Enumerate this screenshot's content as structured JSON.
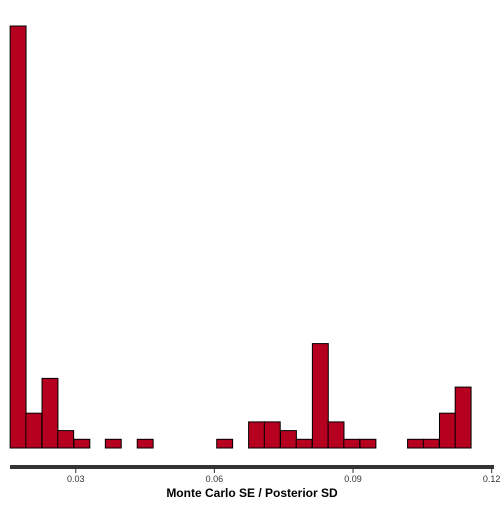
{
  "chart_data": {
    "type": "bar",
    "subtype": "histogram",
    "title": "",
    "xlabel": "Monte Carlo SE / Posterior SD",
    "ylabel": "",
    "xlim": [
      0.01577,
      0.1205
    ],
    "ylim": [
      0,
      97
    ],
    "bin_width": 0.00344,
    "x_ticks": [
      {
        "value": 0.03,
        "label": "0.03"
      },
      {
        "value": 0.06,
        "label": "0.06"
      },
      {
        "value": 0.09,
        "label": "0.09"
      },
      {
        "value": 0.12,
        "label": "0.12"
      }
    ],
    "bin_starts": [
      0.0158,
      0.0192,
      0.0227,
      0.0261,
      0.0296,
      0.033,
      0.0364,
      0.0399,
      0.0433,
      0.0468,
      0.0502,
      0.0536,
      0.0571,
      0.0605,
      0.064,
      0.0674,
      0.0708,
      0.0743,
      0.0777,
      0.0812,
      0.0846,
      0.088,
      0.0915,
      0.0949,
      0.0984,
      0.1018,
      0.1052,
      0.1087,
      0.1121,
      0.1156
    ],
    "values": [
      97,
      8,
      16,
      4,
      2,
      0,
      2,
      0,
      2,
      0,
      0,
      0,
      0,
      2,
      0,
      6,
      6,
      4,
      2,
      24,
      6,
      2,
      2,
      0,
      0,
      2,
      2,
      8,
      14,
      0
    ],
    "grid": false,
    "legend": "none",
    "bar_color": "#b5001f",
    "bar_edge_color": "#000000",
    "axis_color": "#333333"
  }
}
